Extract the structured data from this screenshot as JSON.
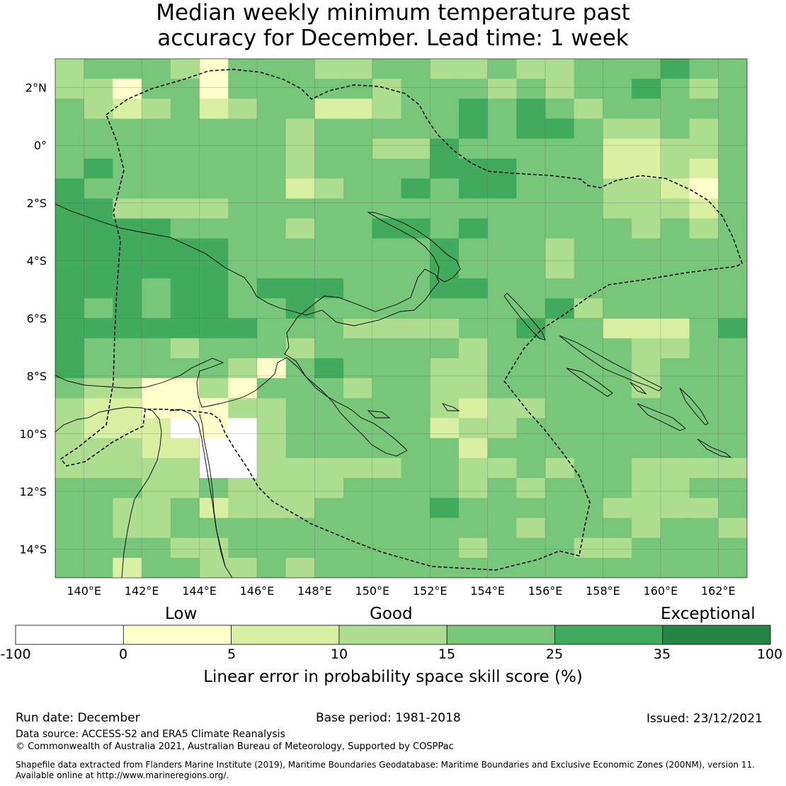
{
  "title": {
    "line1": "Median weekly minimum temperature past",
    "line2": "accuracy for December. Lead time: 1 week"
  },
  "map": {
    "lat_labels": [
      "2°N",
      "0°",
      "2°S",
      "4°S",
      "6°S",
      "8°S",
      "10°S",
      "12°S",
      "14°S"
    ],
    "lon_labels": [
      "140°E",
      "142°E",
      "144°E",
      "146°E",
      "148°E",
      "150°E",
      "152°E",
      "154°E",
      "156°E",
      "158°E",
      "160°E",
      "162°E"
    ],
    "grid_rows": [
      "344431444334433433444544",
      "331441444443444343445434",
      "432342344223445454344444",
      "444444443444445455433434",
      "444444443443354444422334",
      "454444443444455544422324",
      "544444442344545544433214",
      "553333444444444444433324",
      "555544443445545444443434",
      "555555444444454443444444",
      "555555444444454443444444",
      "555455455544455444444444",
      "545455445444444445344444",
      "555555544433334454422245",
      "544434443444443444443344",
      "544444314544433444443444",
      "433113144434433444443444",
      "322111334444432334444444",
      "322201034444423344444444",
      "333220034444442444444444",
      "333330033333443343443333",
      "444334333344443434443344",
      "443342333444454444433334",
      "443344444444444434443443",
      "444433444444443444334444",
      "442443343444444444444444"
    ],
    "palette": [
      "#ffffff",
      "#ffffcc",
      "#d9f0a3",
      "#addd8e",
      "#78c679",
      "#41ab5d",
      "#238443"
    ]
  },
  "colorbar": {
    "words": [
      "Low",
      "Good",
      "Exceptional"
    ],
    "ticks": [
      "-100",
      "0",
      "5",
      "10",
      "15",
      "25",
      "35",
      "100"
    ],
    "label": "Linear error in probability space skill score (%)"
  },
  "footer": {
    "run_date": "Run date: December",
    "base_period": "Base period: 1981-2018",
    "issued": "Issued: 23/12/2021",
    "data_source": "Data source: ACCESS-S2 and ERA5 Climate Reanalysis",
    "copyright": "© Commonwealth of Australia 2021, Australian Bureau of Meteorology, Supported by COSPPac",
    "shapefile_1": "Shapefile data extracted from Flanders Marine Institute (2019), Maritime Boundaries Geodatabase: Maritime Boundaries and Exclusive Economic Zones (200NM), version 11.",
    "shapefile_2": "Available online at http://www.marineregions.org/."
  }
}
